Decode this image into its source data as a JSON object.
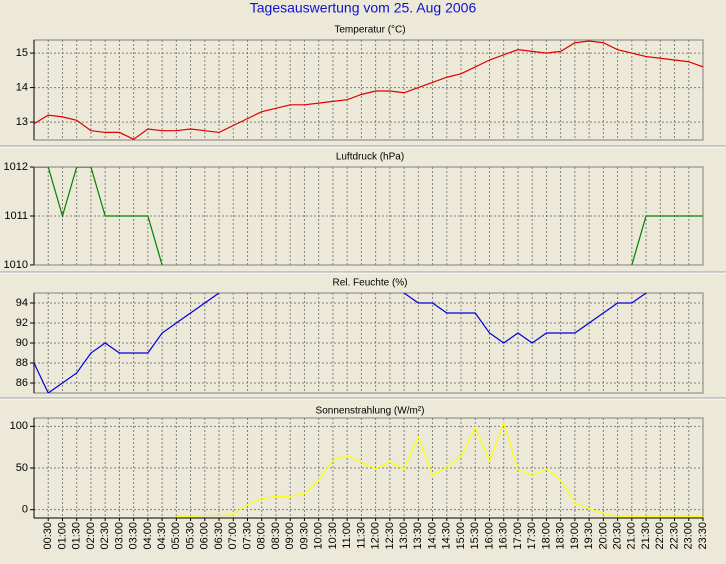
{
  "title": "Tagesauswertung vom 25. Aug 2006",
  "chart_data": [
    {
      "type": "line",
      "title": "Temperatur (°C)",
      "color": "#e00000",
      "values": [
        12.95,
        13.2,
        13.15,
        13.05,
        12.75,
        12.7,
        12.7,
        12.5,
        12.8,
        12.75,
        12.75,
        12.8,
        12.75,
        12.7,
        12.9,
        13.1,
        13.3,
        13.4,
        13.5,
        13.5,
        13.55,
        13.6,
        13.65,
        13.8,
        13.9,
        13.9,
        13.85,
        14.0,
        14.15,
        14.3,
        14.4,
        14.6,
        14.8,
        14.95,
        15.1,
        15.05,
        15.0,
        15.05,
        15.3,
        15.35,
        15.3,
        15.1,
        15.0,
        14.9,
        14.85,
        14.8,
        14.75,
        14.6
      ],
      "ylim": [
        12.48,
        15.38
      ],
      "yticks": [
        13,
        14,
        15
      ],
      "grid": true
    },
    {
      "type": "line",
      "title": "Luftdruck (hPa)",
      "color": "#008000",
      "values": [
        1012,
        1012,
        1011,
        1012,
        1012,
        1011,
        1011,
        1011,
        1011,
        1010,
        null,
        null,
        null,
        null,
        null,
        null,
        null,
        null,
        null,
        null,
        null,
        null,
        null,
        null,
        null,
        null,
        null,
        null,
        null,
        null,
        null,
        null,
        null,
        null,
        null,
        null,
        null,
        null,
        null,
        null,
        null,
        null,
        1010,
        1011,
        1011,
        1011,
        1011,
        1011
      ],
      "ylim": [
        1010,
        1012
      ],
      "yticks": [
        1010,
        1011,
        1012
      ],
      "grid": true
    },
    {
      "type": "line",
      "title": "Rel. Feuchte (%)",
      "color": "#0000e0",
      "values": [
        88,
        85,
        86,
        87,
        89,
        90,
        89,
        89,
        89,
        91,
        92,
        93,
        94,
        95,
        null,
        null,
        null,
        null,
        null,
        null,
        null,
        null,
        null,
        null,
        null,
        null,
        95,
        94,
        94,
        93,
        93,
        93,
        91,
        90,
        91,
        90,
        91,
        91,
        91,
        92,
        93,
        94,
        94,
        95,
        null,
        null,
        null,
        null
      ],
      "ylim": [
        85,
        95
      ],
      "yticks": [
        86,
        88,
        90,
        92,
        94
      ],
      "grid": true
    },
    {
      "type": "line",
      "title": "Sonnenstrahlung (W/m²)",
      "color": "#ffff00",
      "categories": [
        null,
        "00:30",
        "01:00",
        "01:30",
        "02:00",
        "02:30",
        "03:00",
        "03:30",
        "04:00",
        "04:30",
        "05:00",
        "05:30",
        "06:00",
        "06:30",
        "07:00",
        "07:30",
        "08:00",
        "08:30",
        "09:00",
        "09:30",
        "10:00",
        "10:30",
        "11:00",
        "11:30",
        "12:00",
        "12:30",
        "13:00",
        "13:30",
        "14:00",
        "14:30",
        "15:00",
        "15:30",
        "16:00",
        "16:30",
        "17:00",
        "17:30",
        "18:00",
        "18:30",
        "19:00",
        "19:30",
        "20:00",
        "20:30",
        "21:00",
        "21:30",
        "22:00",
        "22:30",
        "23:00",
        "23:30"
      ],
      "values": [
        null,
        null,
        null,
        null,
        null,
        null,
        null,
        null,
        null,
        null,
        -8,
        -8,
        -7,
        -7,
        -6,
        6,
        13,
        16,
        16,
        19,
        36,
        59,
        65,
        57,
        49,
        57,
        49,
        87,
        41,
        51,
        64,
        99,
        58,
        104,
        48,
        41,
        49,
        36,
        8,
        1,
        -5,
        -8,
        -8,
        -8,
        -8,
        -8,
        -8,
        -8
      ],
      "ylim": [
        -10,
        110
      ],
      "yticks": [
        0,
        50,
        100
      ],
      "grid": true
    }
  ]
}
